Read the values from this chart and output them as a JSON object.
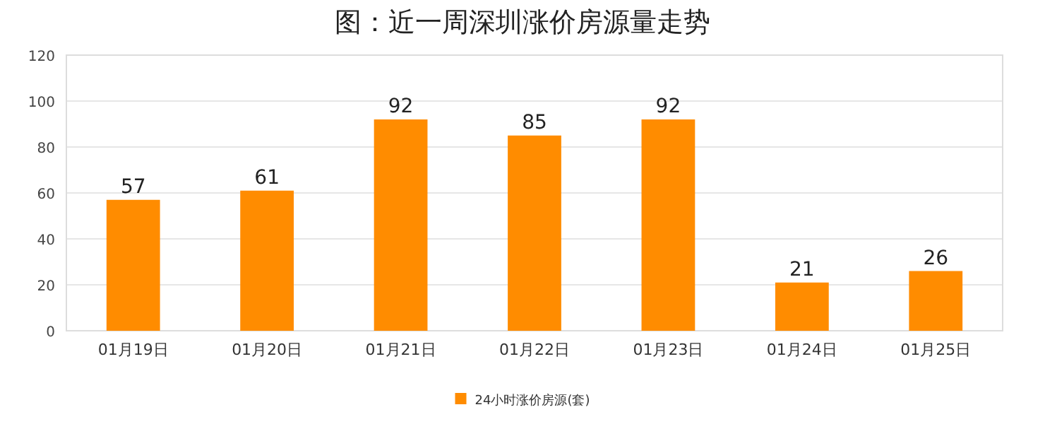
{
  "chart_data": {
    "type": "bar",
    "title": "图：近一周深圳涨价房源量走势",
    "categories": [
      "01月19日",
      "01月20日",
      "01月21日",
      "01月22日",
      "01月23日",
      "01月24日",
      "01月25日"
    ],
    "series": [
      {
        "name": "24小时涨价房源(套)",
        "color": "#ff8c00",
        "values": [
          57,
          61,
          92,
          85,
          92,
          21,
          26
        ]
      }
    ],
    "ylim": [
      0,
      120
    ],
    "yticks": [
      0,
      20,
      40,
      60,
      80,
      100,
      120
    ],
    "grid": "y",
    "legend": "bottom",
    "data_labels": true
  }
}
